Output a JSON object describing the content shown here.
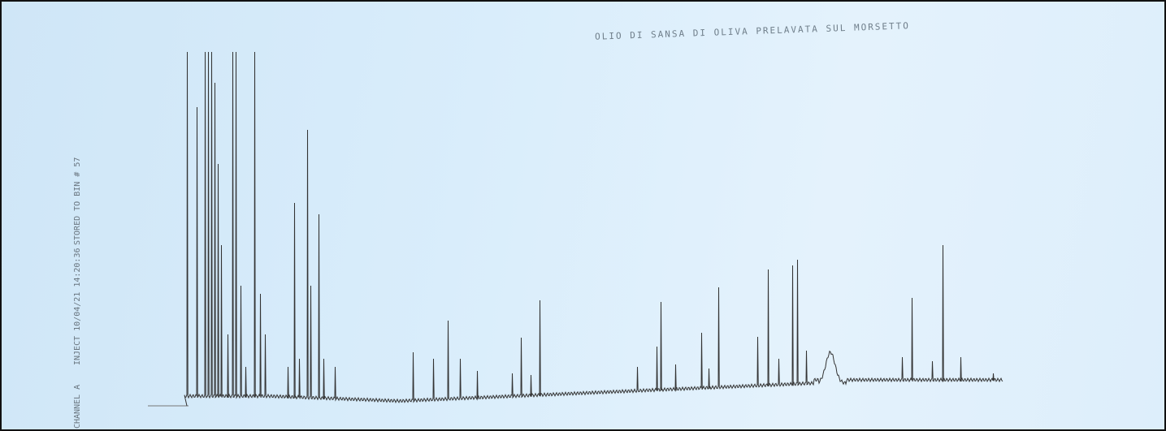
{
  "header": {
    "title": "OLIO DI SANSA DI OLIVA  PRELAVATA SUL MORSETTO"
  },
  "sidebar": {
    "channel": "CHANNEL A",
    "inject": "INJECT  10/04/21 14:20:36",
    "stored": "STORED TO BIN # 57"
  }
}
